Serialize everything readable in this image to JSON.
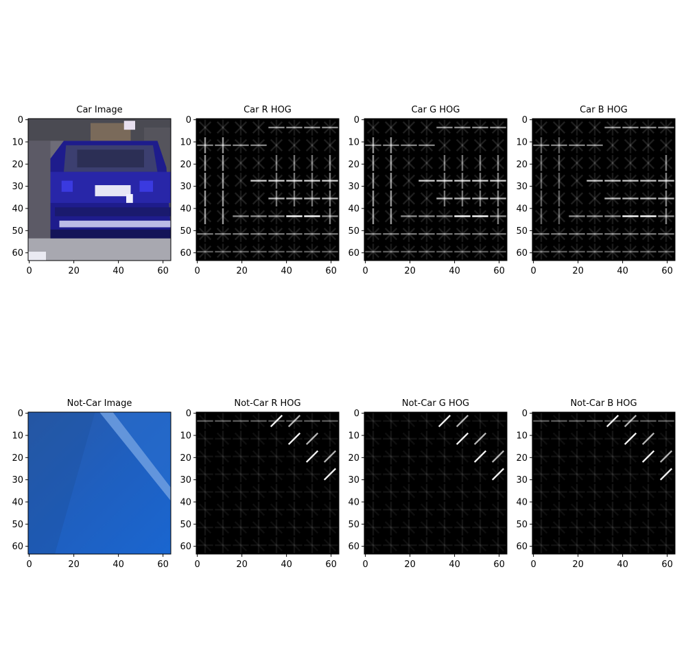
{
  "figure": {
    "rows": [
      {
        "panels": [
          {
            "title": "Car Image",
            "kind": "photo",
            "subject": "car"
          },
          {
            "title": "Car R HOG",
            "kind": "hog",
            "subject": "car",
            "channel": "R"
          },
          {
            "title": "Car G HOG",
            "kind": "hog",
            "subject": "car",
            "channel": "G"
          },
          {
            "title": "Car B HOG",
            "kind": "hog",
            "subject": "car",
            "channel": "B"
          }
        ]
      },
      {
        "panels": [
          {
            "title": "Not-Car Image",
            "kind": "photo",
            "subject": "notcar"
          },
          {
            "title": "Not-Car R  HOG",
            "kind": "hog",
            "subject": "notcar",
            "channel": "R"
          },
          {
            "title": "Not-Car G  HOG",
            "kind": "hog",
            "subject": "notcar",
            "channel": "G"
          },
          {
            "title": "Not-Car B  HOG",
            "kind": "hog",
            "subject": "notcar",
            "channel": "B"
          }
        ]
      }
    ]
  },
  "chart_data": {
    "type": "heatmap",
    "image_size": [
      64,
      64
    ],
    "hog_cell_size": 8,
    "xlim": [
      -0.5,
      63.5
    ],
    "ylim": [
      63.5,
      -0.5
    ],
    "xticks": [
      0,
      20,
      40,
      60
    ],
    "yticks": [
      0,
      10,
      20,
      30,
      40,
      50,
      60
    ],
    "colors": {
      "car_body": "#1e1c8c",
      "car_background": "#6e6c78",
      "road": "#a8a8b0",
      "notcar_base": "#1f5fbf",
      "notcar_stripe": "#6f9fe0",
      "hog_background": "#000000",
      "hog_stroke": "#ffffff"
    }
  }
}
